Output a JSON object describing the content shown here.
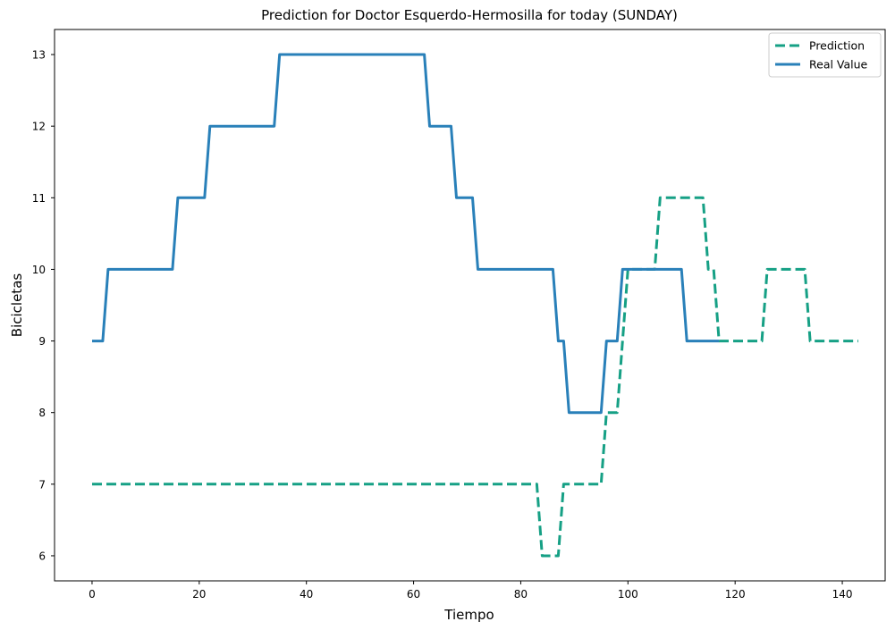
{
  "chart_data": {
    "type": "line",
    "title": "Prediction for Doctor Esquerdo-Hermosilla for today (SUNDAY)",
    "xlabel": "Tiempo",
    "ylabel": "Bicicletas",
    "xlim": [
      -7,
      148
    ],
    "ylim": [
      5.65,
      13.35
    ],
    "xticks": [
      0,
      20,
      40,
      60,
      80,
      100,
      120,
      140
    ],
    "yticks": [
      6,
      7,
      8,
      9,
      10,
      11,
      12,
      13
    ],
    "grid": false,
    "legend_position": "top-right",
    "series": [
      {
        "name": "Prediction",
        "color": "#16a085",
        "style": "dashed",
        "points": [
          [
            0,
            7
          ],
          [
            83,
            7
          ],
          [
            84,
            6
          ],
          [
            87,
            6
          ],
          [
            88,
            7
          ],
          [
            95,
            7
          ],
          [
            96,
            8
          ],
          [
            98,
            8
          ],
          [
            100,
            10
          ],
          [
            105,
            10
          ],
          [
            106,
            11
          ],
          [
            114,
            11
          ],
          [
            115,
            10
          ],
          [
            116,
            10
          ],
          [
            117,
            9
          ],
          [
            125,
            9
          ],
          [
            126,
            10
          ],
          [
            133,
            10
          ],
          [
            134,
            9
          ],
          [
            143,
            9
          ]
        ]
      },
      {
        "name": "Real Value",
        "color": "#2980b9",
        "style": "solid",
        "points": [
          [
            0,
            9
          ],
          [
            2,
            9
          ],
          [
            3,
            10
          ],
          [
            15,
            10
          ],
          [
            16,
            11
          ],
          [
            21,
            11
          ],
          [
            22,
            12
          ],
          [
            34,
            12
          ],
          [
            35,
            13
          ],
          [
            62,
            13
          ],
          [
            63,
            12
          ],
          [
            67,
            12
          ],
          [
            68,
            11
          ],
          [
            71,
            11
          ],
          [
            72,
            10
          ],
          [
            86,
            10
          ],
          [
            87,
            9
          ],
          [
            88,
            9
          ],
          [
            89,
            8
          ],
          [
            95,
            8
          ],
          [
            96,
            9
          ],
          [
            98,
            9
          ],
          [
            99,
            10
          ],
          [
            110,
            10
          ],
          [
            111,
            9
          ],
          [
            117,
            9
          ]
        ]
      }
    ]
  }
}
